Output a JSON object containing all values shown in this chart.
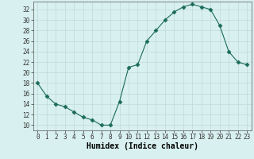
{
  "x": [
    0,
    1,
    2,
    3,
    4,
    5,
    6,
    7,
    8,
    9,
    10,
    11,
    12,
    13,
    14,
    15,
    16,
    17,
    18,
    19,
    20,
    21,
    22,
    23
  ],
  "y": [
    18,
    15.5,
    14,
    13.5,
    12.5,
    11.5,
    11,
    10,
    10,
    14.5,
    21,
    21.5,
    26,
    28,
    30,
    31.5,
    32.5,
    33,
    32.5,
    32,
    29,
    24,
    22,
    21.5
  ],
  "line_color": "#1a6b5a",
  "marker": "D",
  "marker_size": 2.5,
  "bg_color": "#d8f0ef",
  "grid_color": "#c0d8d8",
  "xlabel": "Humidex (Indice chaleur)",
  "xlim": [
    -0.5,
    23.5
  ],
  "ylim": [
    9,
    33.5
  ],
  "yticks": [
    10,
    12,
    14,
    16,
    18,
    20,
    22,
    24,
    26,
    28,
    30,
    32
  ],
  "xticks": [
    0,
    1,
    2,
    3,
    4,
    5,
    6,
    7,
    8,
    9,
    10,
    11,
    12,
    13,
    14,
    15,
    16,
    17,
    18,
    19,
    20,
    21,
    22,
    23
  ],
  "xlabel_fontsize": 7,
  "tick_fontsize": 5.5,
  "line_width": 0.8
}
